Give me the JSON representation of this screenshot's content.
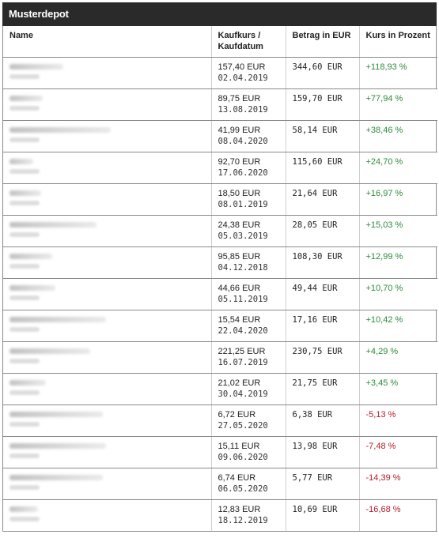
{
  "title": "Musterdepot",
  "columns": {
    "name": "Name",
    "kaufkurs_line1": "Kaufkurs /",
    "kaufkurs_line2": "Kaufdatum",
    "betrag": "Betrag in EUR",
    "kurs": "Kurs in Prozent"
  },
  "rows": [
    {
      "kaufkurs": "157,40 EUR",
      "datum": "02.04.2019",
      "betrag": "344,60 EUR",
      "kurs": "+118,93 %",
      "trend": "pos",
      "name_width": 68
    },
    {
      "kaufkurs": "89,75 EUR",
      "datum": "13.08.2019",
      "betrag": "159,70 EUR",
      "kurs": "+77,94 %",
      "trend": "pos",
      "name_width": 42
    },
    {
      "kaufkurs": "41,99 EUR",
      "datum": "08.04.2020",
      "betrag": "58,14 EUR",
      "kurs": "+38,46 %",
      "trend": "pos",
      "name_width": 128
    },
    {
      "kaufkurs": "92,70 EUR",
      "datum": "17.06.2020",
      "betrag": "115,60 EUR",
      "kurs": "+24,70 %",
      "trend": "pos",
      "name_width": 30
    },
    {
      "kaufkurs": "18,50 EUR",
      "datum": "08.01.2019",
      "betrag": "21,64 EUR",
      "kurs": "+16,97 %",
      "trend": "pos",
      "name_width": 40
    },
    {
      "kaufkurs": "24,38 EUR",
      "datum": "05.03.2019",
      "betrag": "28,05 EUR",
      "kurs": "+15,03 %",
      "trend": "pos",
      "name_width": 110
    },
    {
      "kaufkurs": "95,85 EUR",
      "datum": "04.12.2018",
      "betrag": "108,30 EUR",
      "kurs": "+12,99 %",
      "trend": "pos",
      "name_width": 54
    },
    {
      "kaufkurs": "44,66 EUR",
      "datum": "05.11.2019",
      "betrag": "49,44 EUR",
      "kurs": "+10,70 %",
      "trend": "pos",
      "name_width": 58
    },
    {
      "kaufkurs": "15,54 EUR",
      "datum": "22.04.2020",
      "betrag": "17,16 EUR",
      "kurs": "+10,42 %",
      "trend": "pos",
      "name_width": 122
    },
    {
      "kaufkurs": "221,25 EUR",
      "datum": "16.07.2019",
      "betrag": "230,75 EUR",
      "kurs": "+4,29 %",
      "trend": "pos",
      "name_width": 102
    },
    {
      "kaufkurs": "21,02 EUR",
      "datum": "30.04.2019",
      "betrag": "21,75 EUR",
      "kurs": "+3,45 %",
      "trend": "pos",
      "name_width": 46
    },
    {
      "kaufkurs": "6,72 EUR",
      "datum": "27.05.2020",
      "betrag": "6,38 EUR",
      "kurs": "-5,13 %",
      "trend": "neg",
      "name_width": 118
    },
    {
      "kaufkurs": "15,11 EUR",
      "datum": "09.06.2020",
      "betrag": "13,98 EUR",
      "kurs": "-7,48 %",
      "trend": "neg",
      "name_width": 122
    },
    {
      "kaufkurs": "6,74 EUR",
      "datum": "06.05.2020",
      "betrag": "5,77 EUR",
      "kurs": "-14,39 %",
      "trend": "neg",
      "name_width": 118
    },
    {
      "kaufkurs": "12,83 EUR",
      "datum": "18.12.2019",
      "betrag": "10,69 EUR",
      "kurs": "-16,68 %",
      "trend": "neg",
      "name_width": 36
    }
  ],
  "colors": {
    "positive": "#2e8b3a",
    "negative": "#b3202a",
    "header_bg": "#2a2a2a"
  }
}
